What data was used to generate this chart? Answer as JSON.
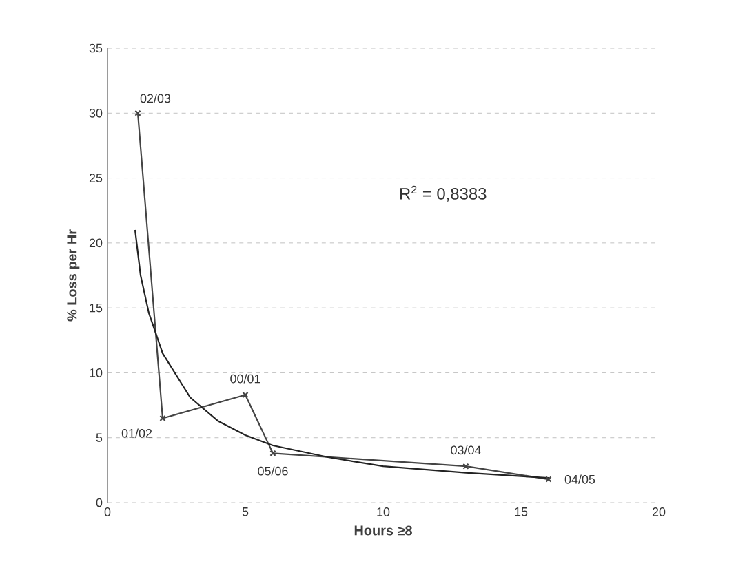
{
  "chart_data": {
    "type": "line",
    "xlabel": "Hours ≥8",
    "ylabel": "% Loss per Hr",
    "xlim": [
      0,
      20
    ],
    "ylim": [
      0,
      35
    ],
    "xticks": [
      0,
      5,
      10,
      15,
      20
    ],
    "yticks": [
      0,
      5,
      10,
      15,
      20,
      25,
      30,
      35
    ],
    "grid": "y",
    "series": [
      {
        "marker": "cross",
        "color": "#444444",
        "x": [
          1.1,
          2,
          5,
          6,
          13,
          16
        ],
        "values": [
          30,
          6.5,
          8.3,
          3.8,
          2.8,
          1.8
        ]
      },
      {
        "marker": "none",
        "color": "#222222",
        "x": [
          1,
          1.2,
          1.5,
          2,
          3,
          4,
          5,
          6,
          8,
          10,
          13,
          16
        ],
        "values": [
          21,
          17.5,
          14.6,
          11.5,
          8.1,
          6.3,
          5.2,
          4.4,
          3.5,
          2.8,
          2.3,
          1.9
        ]
      }
    ],
    "annotations": [
      {
        "text": "02/03",
        "x": 1.1,
        "y": 30
      },
      {
        "text": "01/02",
        "x": 2,
        "y": 6.5
      },
      {
        "text": "00/01",
        "x": 5,
        "y": 8.3
      },
      {
        "text": "05/06",
        "x": 6,
        "y": 3.8
      },
      {
        "text": "03/04",
        "x": 13,
        "y": 2.8
      },
      {
        "text": "04/05",
        "x": 16,
        "y": 1.8
      },
      "R$^{2}$ = 0,8383"
    ]
  }
}
